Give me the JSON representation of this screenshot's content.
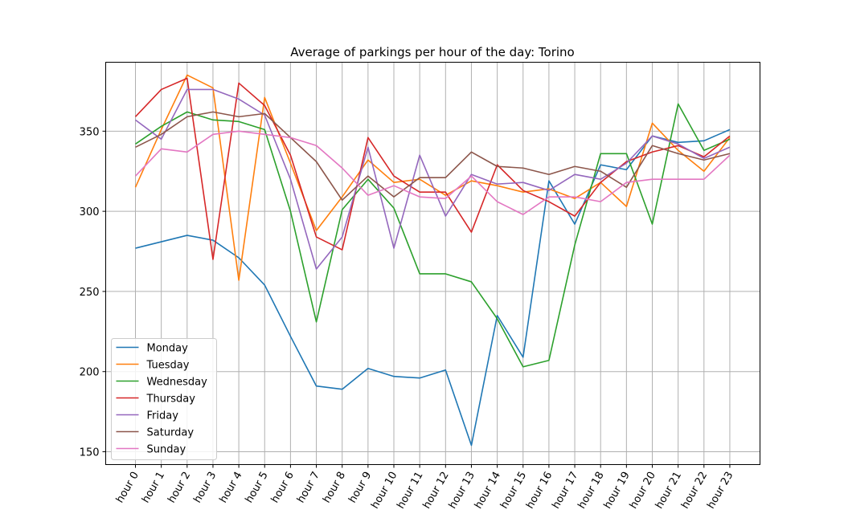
{
  "chart_data": {
    "type": "line",
    "title": "Average of parkings per hour of the day: Torino",
    "xlabel": "",
    "ylabel": "",
    "categories": [
      "hour 0",
      "hour 1",
      "hour 2",
      "hour 3",
      "hour 4",
      "hour 5",
      "hour 6",
      "hour 7",
      "hour 8",
      "hour 9",
      "hour 10",
      "hour 11",
      "hour 12",
      "hour 13",
      "hour 14",
      "hour 15",
      "hour 16",
      "hour 17",
      "hour 18",
      "hour 19",
      "hour 20",
      "hour 21",
      "hour 22",
      "hour 23"
    ],
    "ylim": [
      142,
      393
    ],
    "yticks": [
      150,
      200,
      250,
      300,
      350
    ],
    "grid": true,
    "legend_position": "lower-left",
    "series": [
      {
        "name": "Monday",
        "color": "#1f77b4",
        "values": [
          277,
          281,
          285,
          282,
          271,
          254,
          222,
          191,
          189,
          202,
          197,
          196,
          201,
          154,
          235,
          209,
          319,
          292,
          329,
          326,
          347,
          343,
          344,
          351
        ]
      },
      {
        "name": "Tuesday",
        "color": "#ff7f0e",
        "values": [
          315,
          351,
          385,
          377,
          257,
          371,
          330,
          288,
          309,
          332,
          318,
          320,
          310,
          319,
          316,
          312,
          314,
          308,
          318,
          303,
          355,
          338,
          325,
          346
        ]
      },
      {
        "name": "Wednesday",
        "color": "#2ca02c",
        "values": [
          342,
          353,
          362,
          357,
          356,
          351,
          300,
          231,
          301,
          320,
          302,
          261,
          261,
          256,
          233,
          203,
          207,
          279,
          336,
          336,
          292,
          367,
          338,
          345
        ]
      },
      {
        "name": "Thursday",
        "color": "#d62728",
        "values": [
          359,
          376,
          383,
          270,
          380,
          366,
          335,
          284,
          276,
          346,
          322,
          312,
          312,
          287,
          329,
          313,
          306,
          297,
          318,
          331,
          337,
          341,
          334,
          347
        ]
      },
      {
        "name": "Friday",
        "color": "#9467bd",
        "values": [
          357,
          345,
          376,
          376,
          370,
          360,
          320,
          264,
          284,
          340,
          277,
          335,
          297,
          323,
          317,
          318,
          313,
          323,
          320,
          330,
          347,
          342,
          333,
          340
        ]
      },
      {
        "name": "Saturday",
        "color": "#8c564b",
        "values": [
          340,
          348,
          359,
          362,
          359,
          361,
          346,
          331,
          307,
          322,
          309,
          321,
          321,
          337,
          328,
          327,
          323,
          328,
          325,
          315,
          341,
          336,
          332,
          336
        ]
      },
      {
        "name": "Sunday",
        "color": "#e377c2",
        "values": [
          322,
          339,
          337,
          348,
          350,
          348,
          346,
          341,
          327,
          310,
          316,
          309,
          308,
          322,
          306,
          298,
          309,
          309,
          306,
          318,
          320,
          320,
          320,
          335
        ]
      }
    ]
  }
}
